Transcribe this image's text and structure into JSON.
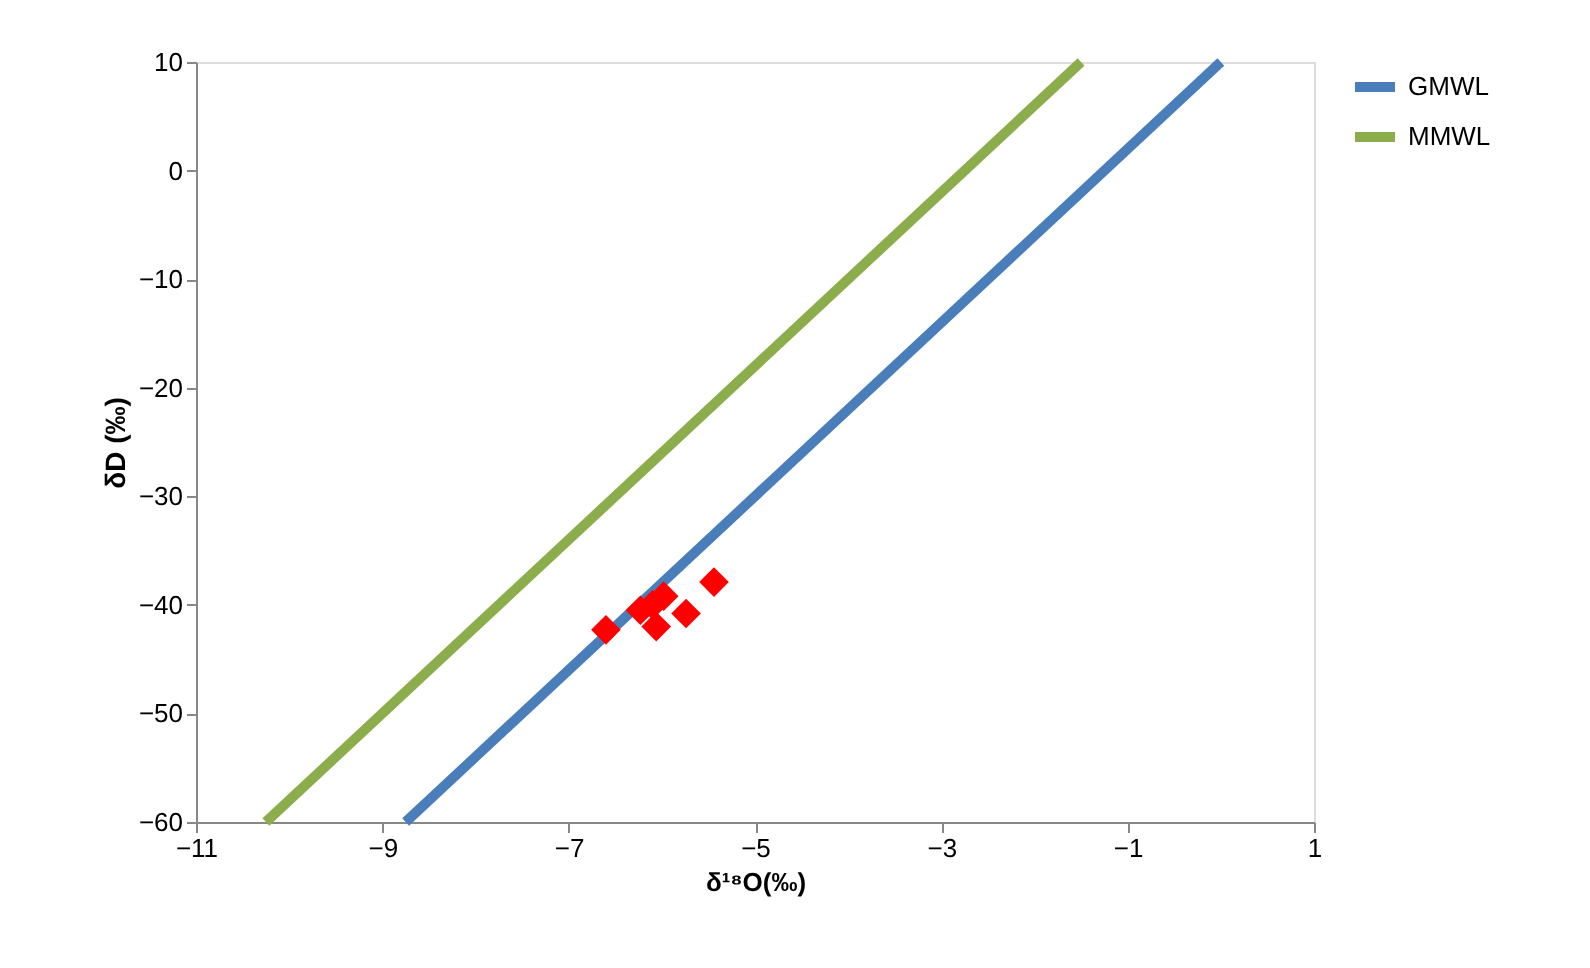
{
  "chart_data": {
    "type": "line",
    "xlabel": "δ¹⁸O(‰)",
    "ylabel": "δD (‰)",
    "xlim": [
      -11,
      1
    ],
    "xticks": [
      -11,
      -9,
      -7,
      -5,
      -3,
      -1,
      1
    ],
    "ylim": [
      -60,
      10
    ],
    "yticks": [
      -60,
      -50,
      -40,
      -30,
      -20,
      -10,
      0,
      10
    ],
    "grid": false,
    "legend": "right",
    "series": [
      {
        "name": "GMWL",
        "color": "#4a7ebb",
        "x": [
          -8.75,
          0
        ],
        "values": [
          -60,
          10
        ]
      },
      {
        "name": "MMWL",
        "color": "#8cad4c",
        "x": [
          -10.25,
          -1.5
        ],
        "values": [
          -60,
          10
        ]
      },
      {
        "type": "scatter",
        "marker": "diamond",
        "color": "#ff0000",
        "x": [
          -6.6,
          -6.23,
          -6.06,
          -5.98,
          -6.1,
          -5.74,
          -5.44
        ],
        "values": [
          -42.3,
          -40.5,
          -42,
          -39.2,
          -40,
          -40.8,
          -37.9
        ]
      }
    ]
  }
}
